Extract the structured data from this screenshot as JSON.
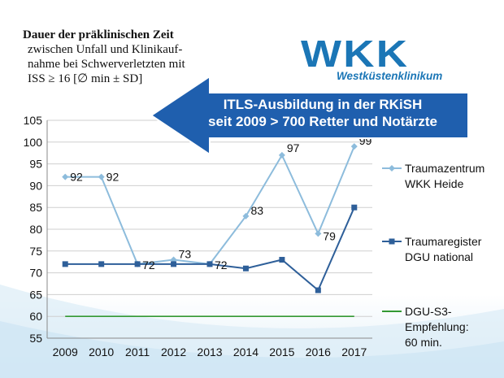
{
  "title": {
    "line1": "Dauer der präklinischen Zeit",
    "line2": "zwischen Unfall und Klinikauf-",
    "line3": "nahme bei Schwerverletzten mit",
    "line4": "ISS ≥ 16 [∅ min ± SD]"
  },
  "logo": {
    "mark": "WKK",
    "subtitle": "Westküstenklinikum"
  },
  "banner": {
    "line1": "ITLS-Ausbildung in der RKiSH",
    "line2": "seit 2009 > 700 Retter und Notärzte"
  },
  "colors": {
    "light_blue": "#8dbcdc",
    "dark_blue": "#2e5f99",
    "green": "#339933",
    "arrow": "#1f5fae"
  },
  "chart_data": {
    "type": "line",
    "x": [
      "2009",
      "2010",
      "2011",
      "2012",
      "2013",
      "2014",
      "2015",
      "2016",
      "2017"
    ],
    "ylim": [
      55,
      105
    ],
    "yticks": [
      55,
      60,
      65,
      70,
      75,
      80,
      85,
      90,
      95,
      100,
      105
    ],
    "grid": "horizontal",
    "legend_position": "right",
    "series": [
      {
        "name": "Traumazentrum WKK Heide",
        "legend_lines": [
          "Traumazentrum",
          "WKK Heide"
        ],
        "values": [
          92,
          92,
          72,
          73,
          72,
          83,
          97,
          79,
          99
        ],
        "data_labels": [
          "92",
          "92",
          "72",
          "73",
          "72",
          "83",
          "97",
          "79",
          "99"
        ]
      },
      {
        "name": "Traumaregister DGU national",
        "legend_lines": [
          "Traumaregister",
          "DGU national"
        ],
        "values": [
          72,
          72,
          72,
          72,
          72,
          71,
          73,
          66,
          85
        ]
      },
      {
        "name": "DGU-S3-Empfehlung: 60 min.",
        "legend_lines": [
          "DGU-S3-",
          "Empfehlung:",
          "60 min."
        ],
        "values": [
          60,
          60,
          60,
          60,
          60,
          60,
          60,
          60,
          60
        ]
      }
    ]
  }
}
